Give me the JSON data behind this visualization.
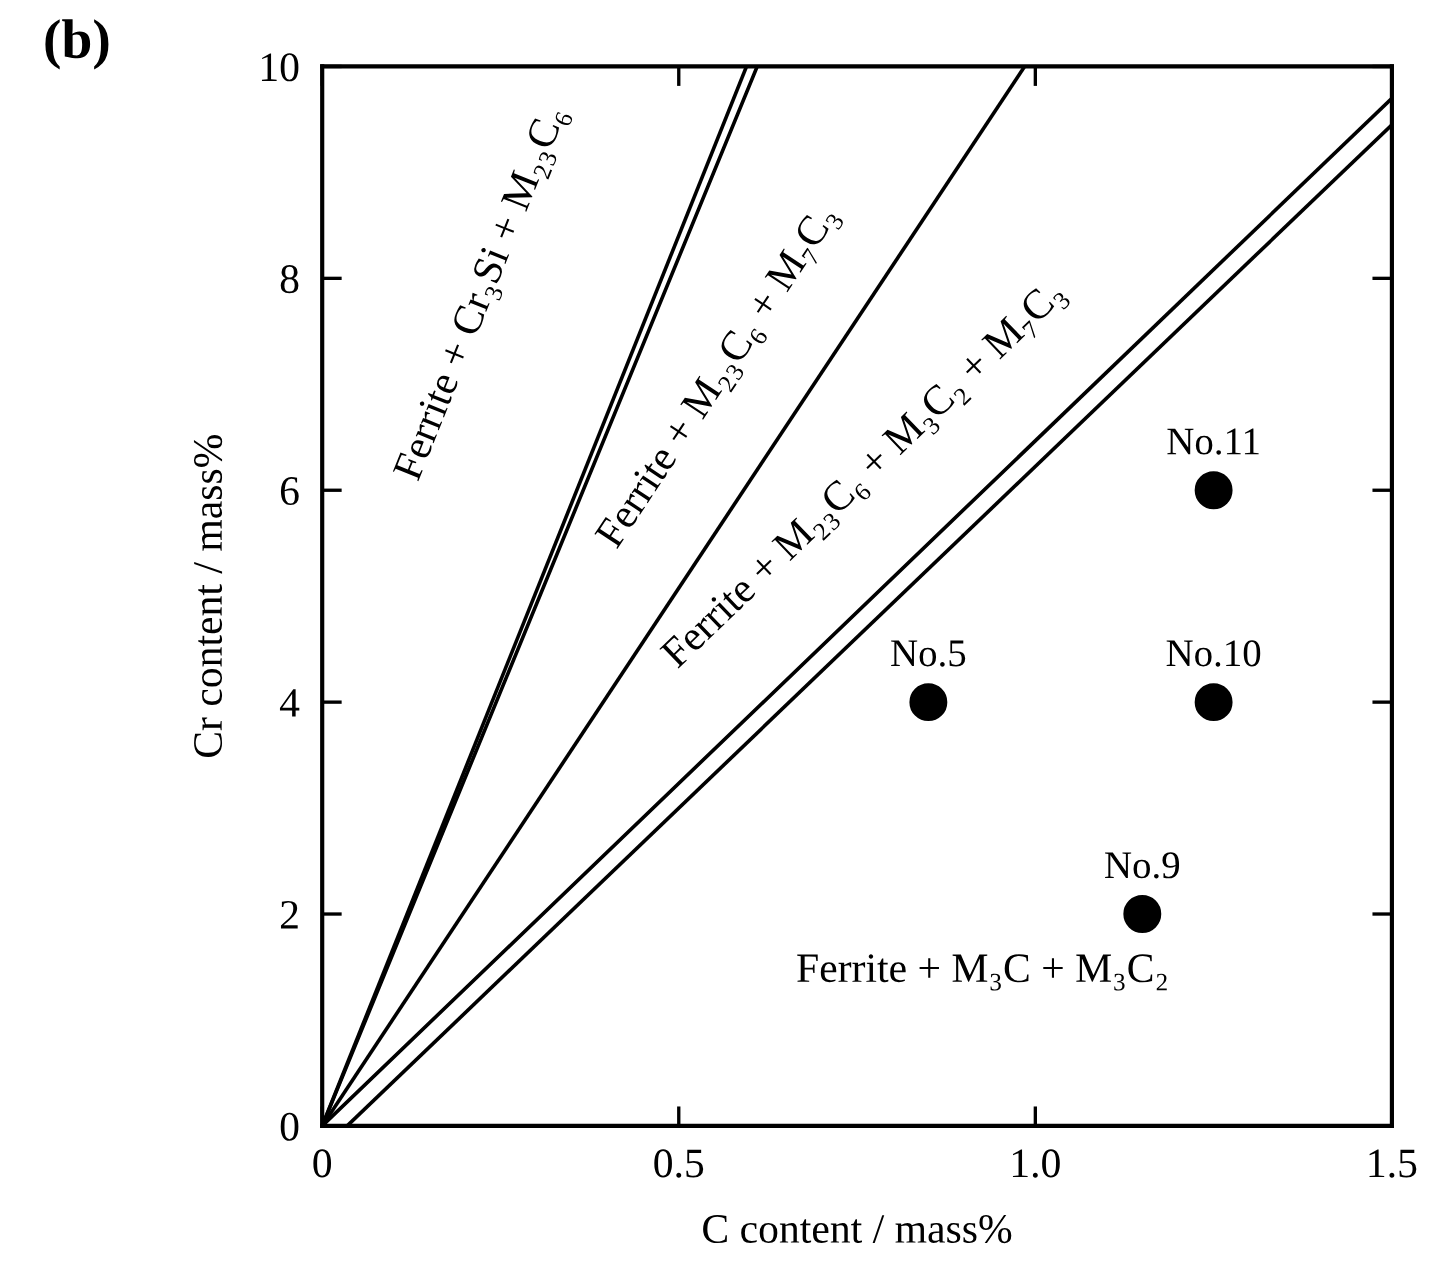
{
  "chart_data": {
    "type": "line",
    "xlabel": "C content / mass%",
    "ylabel": "Cr content / mass%",
    "xlim": [
      0,
      1.5
    ],
    "ylim": [
      0,
      10
    ],
    "xticks": [
      0,
      0.5,
      {
        "value": 1,
        "label": "1.0"
      },
      1.5
    ],
    "yticks": [
      0,
      2,
      4,
      6,
      8,
      10
    ],
    "grid": false,
    "legend": false,
    "marker": "none",
    "line_style": "solid",
    "series": [
      {
        "color": "#000000",
        "x": [
          0,
          0.595
        ],
        "values": [
          0,
          10
        ]
      },
      {
        "color": "#000000",
        "x": [
          0,
          0.61
        ],
        "values": [
          0,
          10
        ]
      },
      {
        "color": "#000000",
        "x": [
          0,
          0.985
        ],
        "values": [
          0,
          10
        ]
      },
      {
        "color": "#000000",
        "x": [
          0,
          1.5
        ],
        "values": [
          0,
          9.7
        ]
      },
      {
        "color": "#000000",
        "x": [
          0.035,
          1.5
        ],
        "values": [
          0,
          9.45
        ]
      },
      {
        "type": "scatter",
        "color": "#000000",
        "marker": "circle",
        "x": [
          1.25,
          0.85,
          1.25,
          1.15
        ],
        "values": [
          6,
          4,
          4,
          2
        ],
        "value_labels": [
          "No.11",
          "No.5",
          "No.10",
          "No.9"
        ]
      }
    ],
    "annotations": [
      "(b)",
      "Ferrite + Cr₃Si + M₂₃C₆",
      "Ferrite + M₂₃C₆ + M₇C₃",
      "Ferrite + M₂₃C₆ + M₃C₂ + M₇C₃",
      "Ferrite + M₃C + M₃C₂"
    ]
  }
}
